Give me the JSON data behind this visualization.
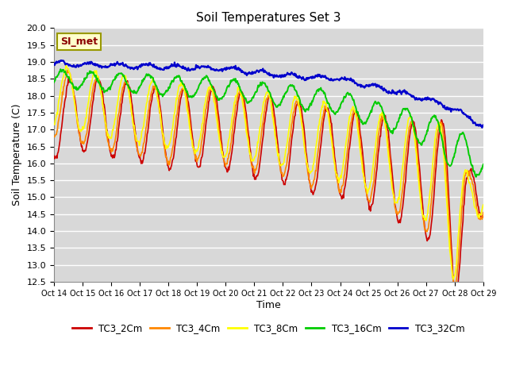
{
  "title": "Soil Temperatures Set 3",
  "xlabel": "Time",
  "ylabel": "Soil Temperature (C)",
  "ylim": [
    12.5,
    20.0
  ],
  "yticks": [
    12.5,
    13.0,
    13.5,
    14.0,
    14.5,
    15.0,
    15.5,
    16.0,
    16.5,
    17.0,
    17.5,
    18.0,
    18.5,
    19.0,
    19.5,
    20.0
  ],
  "xtick_labels": [
    "Oct 14",
    "Oct 15",
    "Oct 16",
    "Oct 17",
    "Oct 18",
    "Oct 19",
    "Oct 20",
    "Oct 21",
    "Oct 22",
    "Oct 23",
    "Oct 24",
    "Oct 25",
    "Oct 26",
    "Oct 27",
    "Oct 28",
    "Oct 29"
  ],
  "legend_entries": [
    "TC3_2Cm",
    "TC3_4Cm",
    "TC3_8Cm",
    "TC3_16Cm",
    "TC3_32Cm"
  ],
  "legend_colors": [
    "#cc0000",
    "#ff8800",
    "#ffff00",
    "#00cc00",
    "#0000cc"
  ],
  "annotation_text": "SI_met",
  "annotation_color": "#8b0000",
  "annotation_bg": "#ffffcc",
  "annotation_border": "#999900",
  "plot_bg_color": "#d8d8d8",
  "grid_color": "#ffffff",
  "title_fontsize": 11,
  "n_points": 720
}
